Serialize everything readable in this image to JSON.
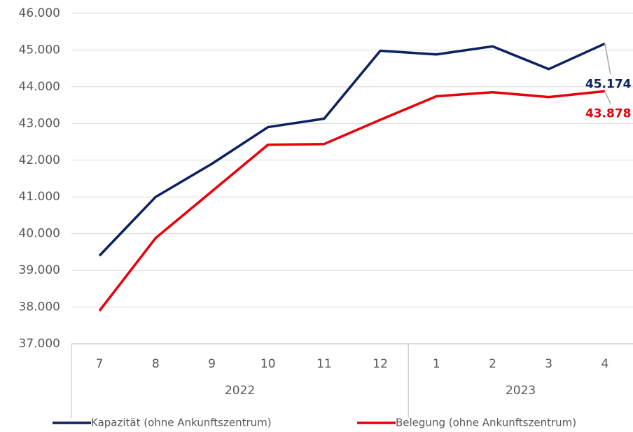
{
  "chart_data": {
    "type": "line",
    "categories": [
      "7",
      "8",
      "9",
      "10",
      "11",
      "12",
      "1",
      "2",
      "3",
      "4"
    ],
    "category_groups": [
      {
        "label": "2022",
        "count": 6
      },
      {
        "label": "2023",
        "count": 4
      }
    ],
    "series": [
      {
        "name": "Kapazität (ohne Ankunftszentrum)",
        "color": "#0c2160",
        "values": [
          39400,
          41000,
          41900,
          42900,
          43130,
          44980,
          44880,
          45100,
          44480,
          45174
        ],
        "value_labels": [
          null,
          null,
          null,
          null,
          null,
          null,
          null,
          null,
          null,
          "45.174"
        ]
      },
      {
        "name": "Belegung (ohne Ankunftszentrum)",
        "color": "#e8000b",
        "values": [
          37900,
          39880,
          41150,
          42420,
          42440,
          43100,
          43740,
          43850,
          43720,
          43878
        ],
        "value_labels": [
          null,
          null,
          null,
          null,
          null,
          null,
          null,
          null,
          null,
          "43.878"
        ]
      }
    ],
    "ylim": [
      37000,
      46000
    ],
    "yticks": [
      {
        "value": 37000,
        "label": "37.000"
      },
      {
        "value": 38000,
        "label": "38.000"
      },
      {
        "value": 39000,
        "label": "39.000"
      },
      {
        "value": 40000,
        "label": "40.000"
      },
      {
        "value": 41000,
        "label": "41.000"
      },
      {
        "value": 42000,
        "label": "42.000"
      },
      {
        "value": 43000,
        "label": "43.000"
      },
      {
        "value": 44000,
        "label": "44.000"
      },
      {
        "value": 45000,
        "label": "45.000"
      },
      {
        "value": 46000,
        "label": "46.000"
      }
    ],
    "grid": true,
    "legend": "bottom"
  }
}
